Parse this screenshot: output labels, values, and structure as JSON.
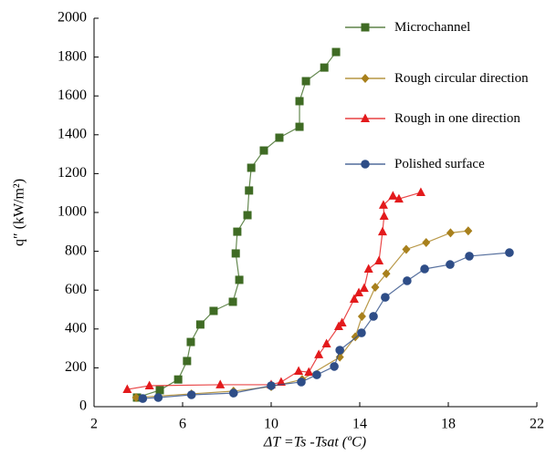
{
  "chart_data": {
    "type": "line",
    "x_label": "ΔT =Ts -Tsat (ºC)",
    "y_label": "q″ (kW/m²)",
    "xlim": [
      2,
      22
    ],
    "xticks": [
      2,
      6,
      10,
      14,
      18,
      22
    ],
    "ylim": [
      0,
      2000
    ],
    "yticks": [
      0,
      200,
      400,
      600,
      800,
      1000,
      1200,
      1400,
      1600,
      1800,
      2000
    ],
    "grid": false,
    "legend": "upper right",
    "series": [
      {
        "name": "Microchannel",
        "color": "#3f6b24",
        "marker": "square",
        "x": [
          3.94,
          4.97,
          5.8,
          6.2,
          6.37,
          6.8,
          7.4,
          8.27,
          8.56,
          8.4,
          8.47,
          8.93,
          9.0,
          9.1,
          9.67,
          10.37,
          11.28,
          11.28,
          11.57,
          12.4,
          12.93
        ],
        "values": [
          47,
          85,
          140,
          235,
          333,
          423,
          493,
          540,
          653,
          789,
          901,
          986,
          1113,
          1230,
          1319,
          1385,
          1441,
          1573,
          1676,
          1746,
          1826
        ]
      },
      {
        "name": "Rough circular direction",
        "color": "#a8801c",
        "marker": "diamond",
        "x": [
          3.9,
          6.4,
          8.3,
          10.0,
          11.4,
          13.1,
          13.8,
          14.1,
          14.7,
          15.2,
          16.1,
          17.0,
          18.1,
          18.9
        ],
        "values": [
          47,
          66,
          80,
          103,
          140,
          255,
          360,
          465,
          615,
          685,
          810,
          845,
          895,
          905
        ]
      },
      {
        "name": "Rough in one direction",
        "color": "#e31a1c",
        "marker": "triangle",
        "x": [
          3.5,
          4.5,
          7.7,
          10.0,
          10.45,
          11.24,
          11.7,
          12.15,
          12.5,
          13.05,
          13.2,
          13.75,
          13.96,
          14.2,
          14.4,
          14.87,
          15.03,
          15.1,
          15.07,
          15.5,
          15.77,
          16.76
        ],
        "values": [
          89,
          108,
          113,
          113,
          127,
          183,
          178,
          268,
          324,
          413,
          432,
          554,
          587,
          610,
          709,
          751,
          901,
          981,
          1038,
          1085,
          1070,
          1103
        ]
      },
      {
        "name": "Polished surface",
        "color": "#2e4d87",
        "marker": "circle",
        "x": [
          4.2,
          4.9,
          6.4,
          8.3,
          10.0,
          11.36,
          12.06,
          12.85,
          13.1,
          14.08,
          14.62,
          15.15,
          16.14,
          16.93,
          18.08,
          18.95,
          20.76
        ],
        "values": [
          42,
          47,
          61,
          70,
          108,
          127,
          164,
          207,
          291,
          380,
          465,
          563,
          648,
          709,
          732,
          775,
          793
        ]
      }
    ]
  }
}
